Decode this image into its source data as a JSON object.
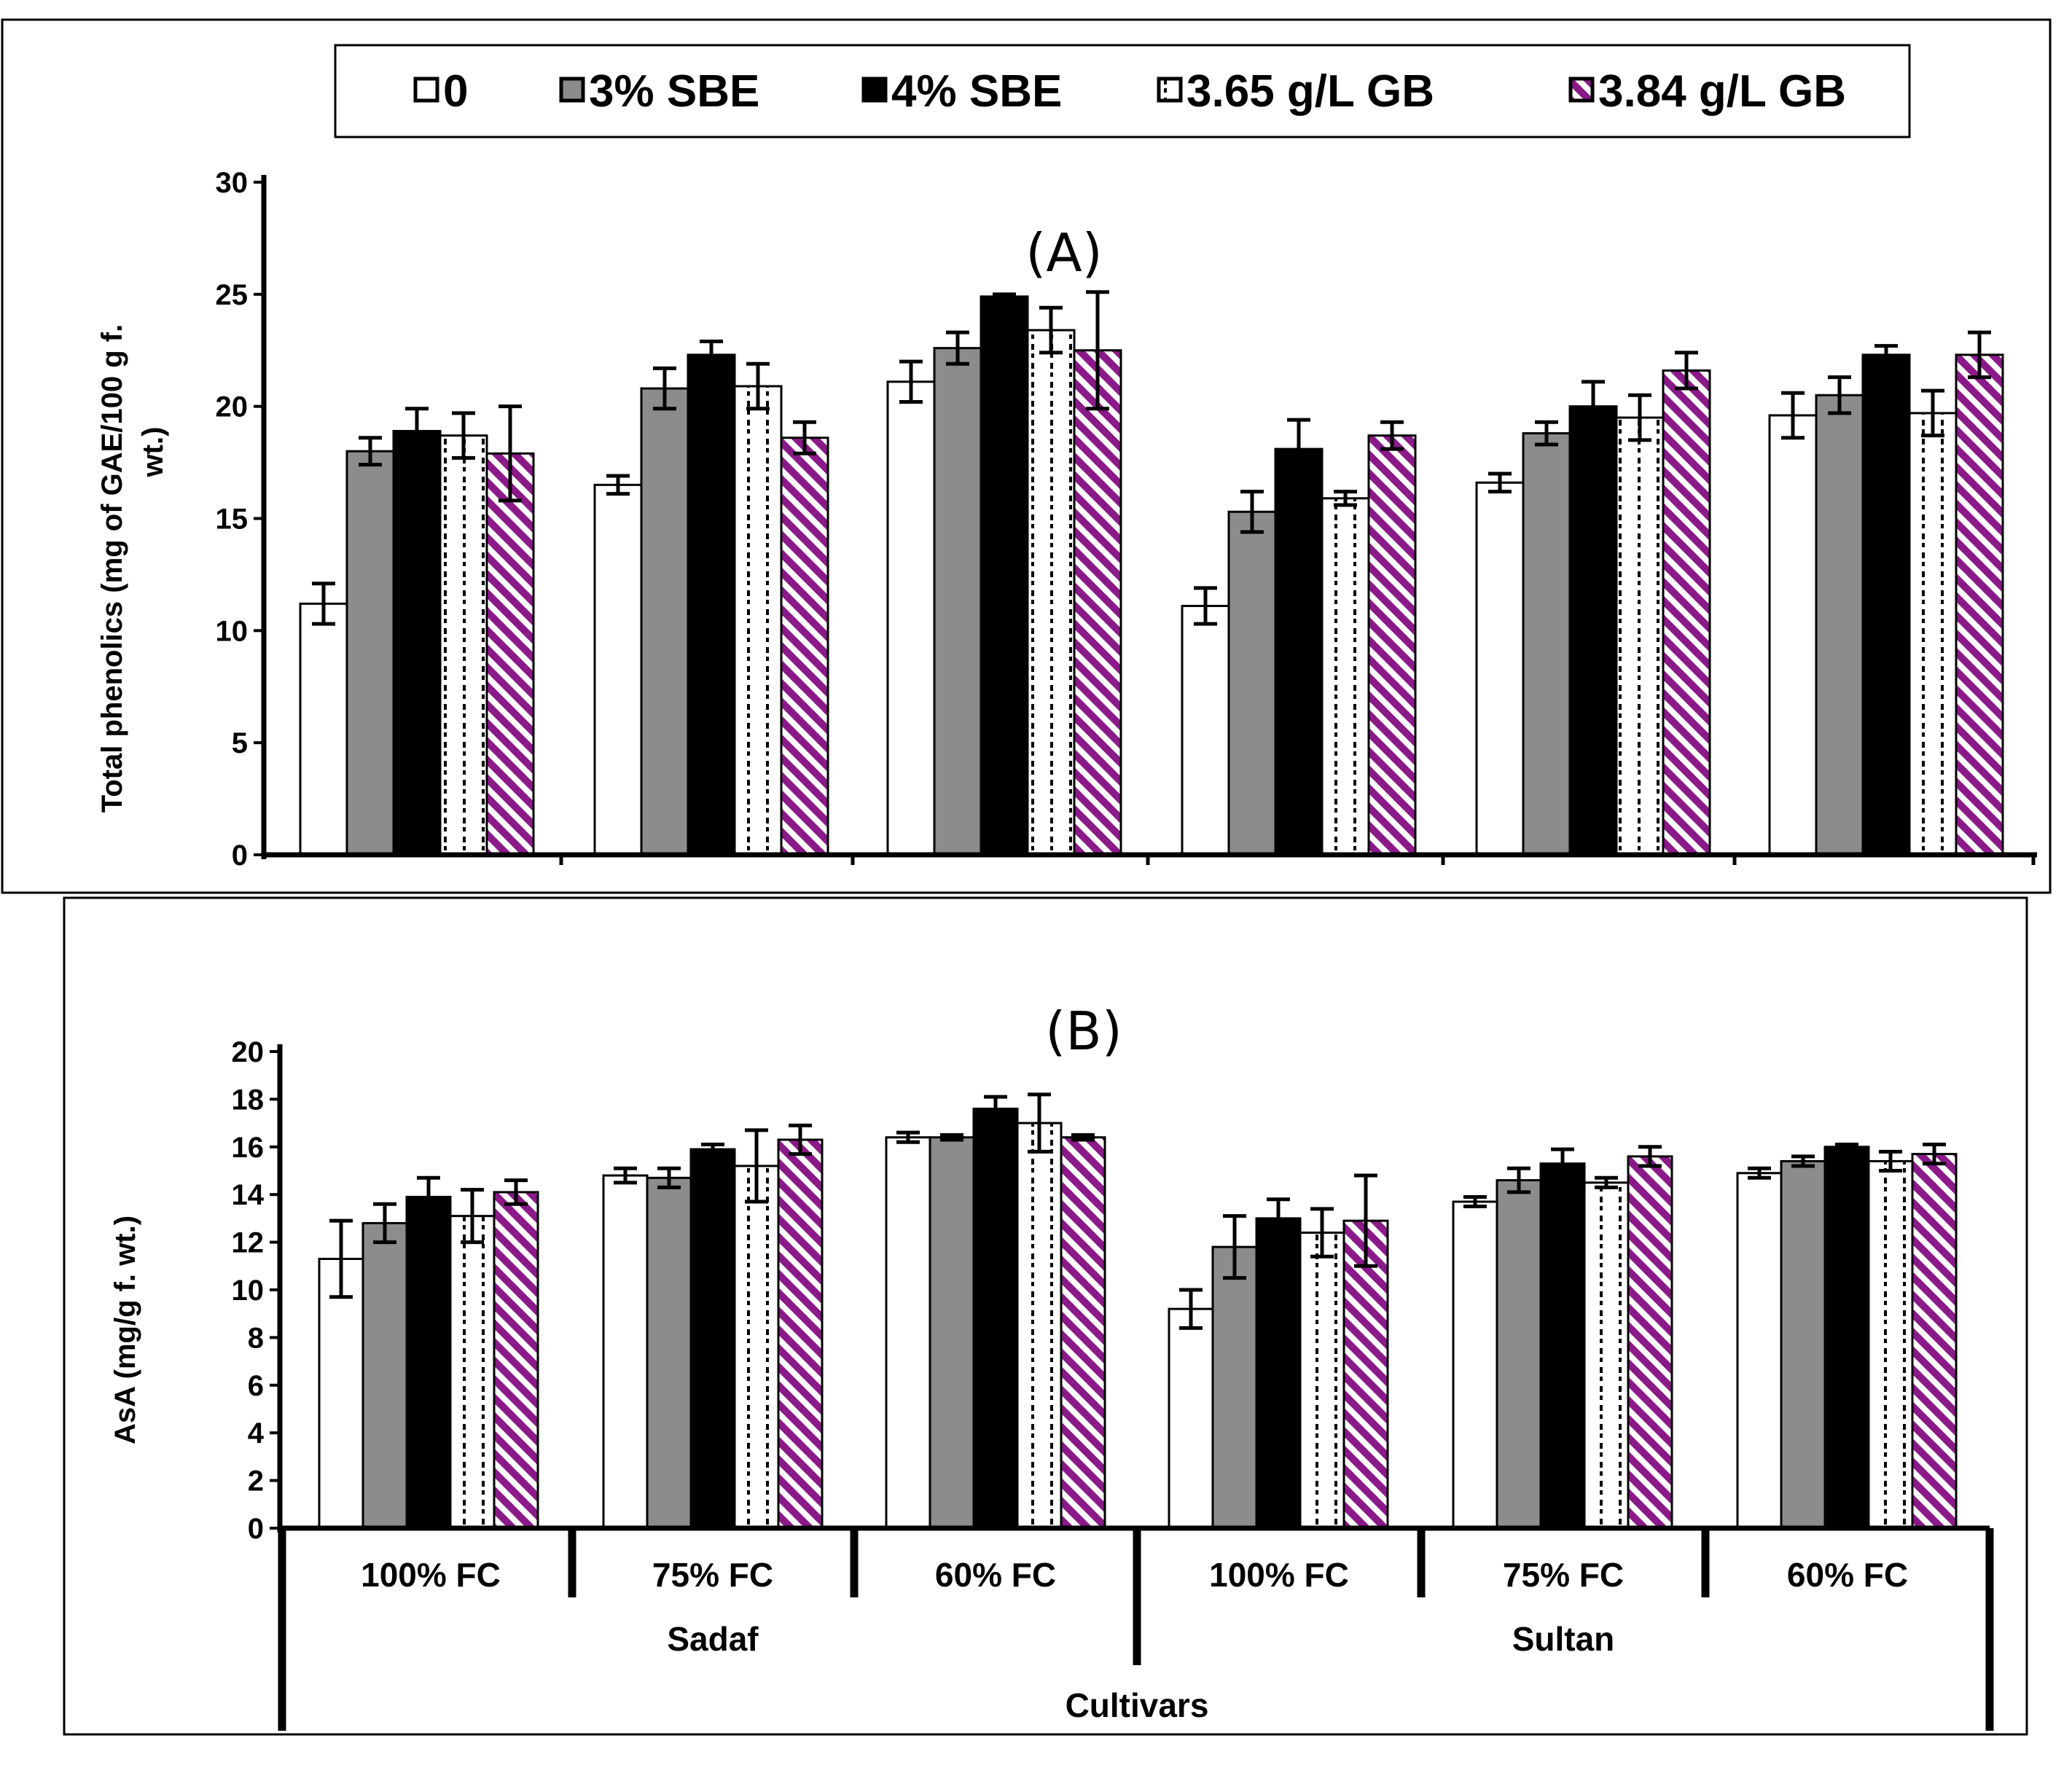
{
  "legend": [
    {
      "key": "0",
      "label": "0",
      "pattern": "plain"
    },
    {
      "key": "sbe3",
      "label": "3% SBE",
      "pattern": "gray"
    },
    {
      "key": "sbe4",
      "label": "4% SBE",
      "pattern": "black"
    },
    {
      "key": "gb365",
      "label": "3.65 g/L GB",
      "pattern": "dots"
    },
    {
      "key": "gb384",
      "label": "3.84 g/L GB",
      "pattern": "stripes"
    }
  ],
  "colors": {
    "gray": "#8c8c8c",
    "black": "#000000",
    "purple": "#8b1a89",
    "white": "#ffffff"
  },
  "groups": {
    "fc_levels": [
      "100% FC",
      "75% FC",
      "60% FC",
      "100% FC",
      "75% FC",
      "60% FC"
    ],
    "cultivars": [
      "Sadaf",
      "Sultan"
    ],
    "axis_title": "Cultivars"
  },
  "chart_data": [
    {
      "type": "bar",
      "panel_label": "(A)",
      "ylabel_line1": "Total phenolics (mg of GAE/100 g f.",
      "ylabel_line2": "wt.)",
      "ylim": [
        0,
        30
      ],
      "yticks": [
        0,
        5,
        10,
        15,
        20,
        25,
        30
      ],
      "categories": [
        "100% FC",
        "75% FC",
        "60% FC",
        "100% FC",
        "75% FC",
        "60% FC"
      ],
      "series": [
        {
          "name": "0",
          "values": [
            11.2,
            16.5,
            21.1,
            11.1,
            16.6,
            19.6
          ],
          "errors": [
            0.9,
            0.4,
            0.9,
            0.8,
            0.4,
            1.0
          ]
        },
        {
          "name": "3% SBE",
          "values": [
            18.0,
            20.8,
            22.6,
            15.3,
            18.8,
            20.5
          ],
          "errors": [
            0.6,
            0.9,
            0.7,
            0.9,
            0.5,
            0.8
          ]
        },
        {
          "name": "4% SBE",
          "values": [
            18.9,
            22.3,
            24.9,
            18.1,
            20.0,
            22.3
          ],
          "errors": [
            1.0,
            0.6,
            0.1,
            1.3,
            1.1,
            0.4
          ]
        },
        {
          "name": "3.65 g/L GB",
          "values": [
            18.7,
            20.9,
            23.4,
            15.9,
            19.5,
            19.7
          ],
          "errors": [
            1.0,
            1.0,
            1.0,
            0.3,
            1.0,
            1.0
          ]
        },
        {
          "name": "3.84 g/L GB",
          "values": [
            17.9,
            18.6,
            22.5,
            18.7,
            21.6,
            22.3
          ],
          "errors": [
            2.1,
            0.7,
            2.6,
            0.6,
            0.8,
            1.0
          ]
        }
      ]
    },
    {
      "type": "bar",
      "panel_label": "(B)",
      "ylabel_line1": "AsA (mg/g f. wt.)",
      "ylim": [
        0,
        20
      ],
      "yticks": [
        0,
        2,
        4,
        6,
        8,
        10,
        12,
        14,
        16,
        18,
        20
      ],
      "categories": [
        "100% FC",
        "75% FC",
        "60% FC",
        "100% FC",
        "75% FC",
        "60% FC"
      ],
      "series": [
        {
          "name": "0",
          "values": [
            11.3,
            14.8,
            16.4,
            9.2,
            13.7,
            14.9
          ],
          "errors": [
            1.6,
            0.3,
            0.2,
            0.8,
            0.2,
            0.2
          ]
        },
        {
          "name": "3% SBE",
          "values": [
            12.8,
            14.7,
            16.4,
            11.8,
            14.6,
            15.4
          ],
          "errors": [
            0.8,
            0.4,
            0.1,
            1.3,
            0.5,
            0.2
          ]
        },
        {
          "name": "4% SBE",
          "values": [
            13.9,
            15.9,
            17.6,
            13.0,
            15.3,
            16.0
          ],
          "errors": [
            0.8,
            0.2,
            0.5,
            0.8,
            0.6,
            0.1
          ]
        },
        {
          "name": "3.65 g/L GB",
          "values": [
            13.1,
            15.2,
            17.0,
            12.4,
            14.5,
            15.4
          ],
          "errors": [
            1.1,
            1.5,
            1.2,
            1.0,
            0.2,
            0.4
          ]
        },
        {
          "name": "3.84 g/L GB",
          "values": [
            14.1,
            16.3,
            16.4,
            12.9,
            15.6,
            15.7
          ],
          "errors": [
            0.5,
            0.6,
            0.1,
            1.9,
            0.4,
            0.4
          ]
        }
      ]
    }
  ]
}
